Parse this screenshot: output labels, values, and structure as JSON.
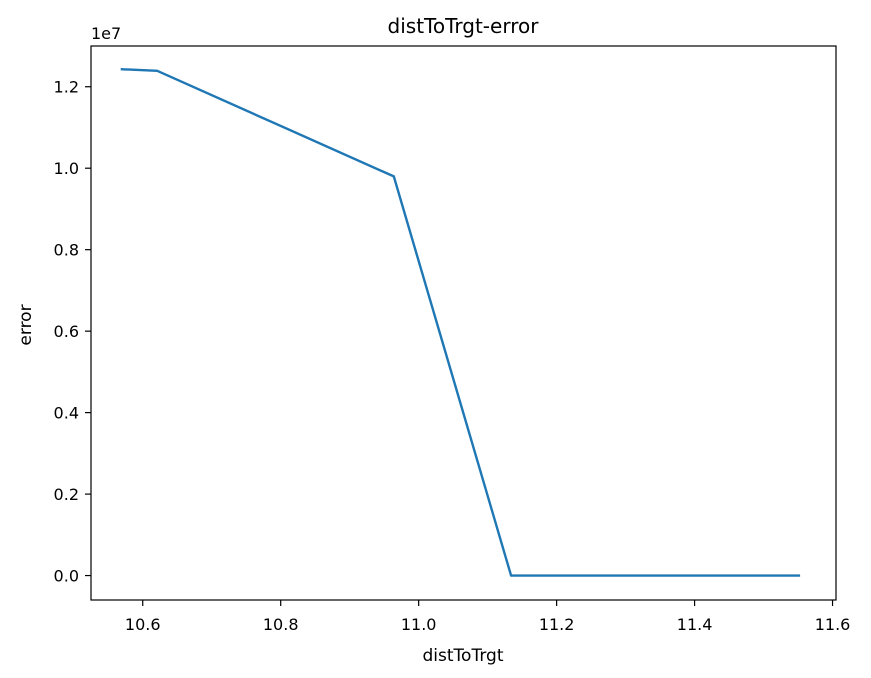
{
  "chart_data": {
    "type": "line",
    "title": "distToTrgt-error",
    "xlabel": "distToTrgt",
    "ylabel": "error",
    "y_offset_label": "1e7",
    "xlim": [
      10.525,
      11.605
    ],
    "ylim": [
      -600000,
      13000000
    ],
    "x_ticks": [
      10.6,
      10.8,
      11.0,
      11.2,
      11.4,
      11.6
    ],
    "x_tick_labels": [
      "10.6",
      "10.8",
      "11.0",
      "11.2",
      "11.4",
      "11.6"
    ],
    "y_ticks": [
      0,
      2000000,
      4000000,
      6000000,
      8000000,
      10000000,
      12000000
    ],
    "y_tick_labels": [
      "0.0",
      "0.2",
      "0.4",
      "0.6",
      "0.8",
      "1.0",
      "1.2"
    ],
    "grid": false,
    "series": [
      {
        "color": "#1f77b4",
        "x": [
          10.568,
          10.621,
          10.964,
          11.134,
          11.553
        ],
        "y": [
          12430000,
          12390000,
          9800000,
          0,
          0
        ]
      }
    ]
  }
}
